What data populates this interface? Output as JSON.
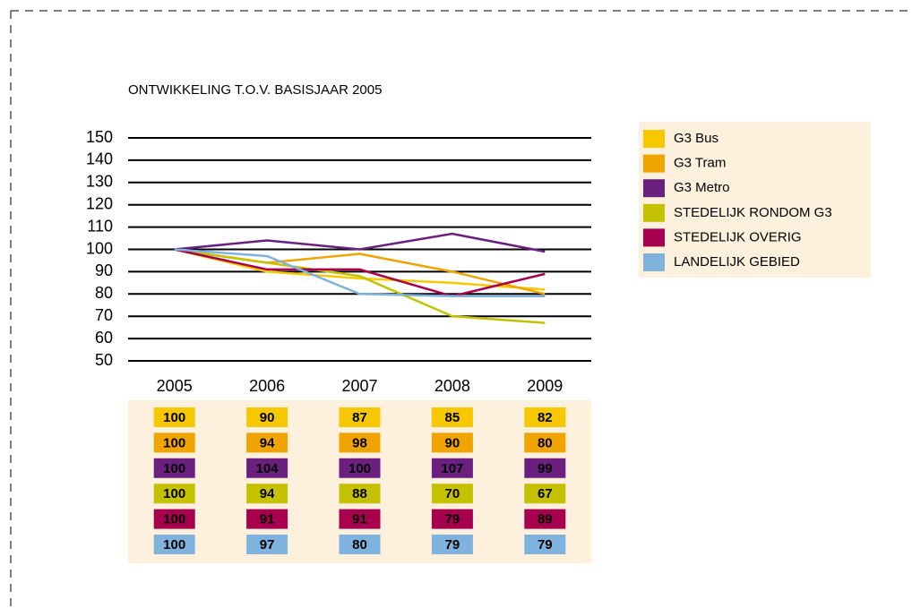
{
  "chart_data": {
    "type": "line",
    "title": "ONTWIKKELING T.O.V. BASISJAAR 2005",
    "categories": [
      "2005",
      "2006",
      "2007",
      "2008",
      "2009"
    ],
    "series": [
      {
        "name": "G3 Bus",
        "color": "#f7c800",
        "values": [
          100,
          90,
          87,
          85,
          82
        ]
      },
      {
        "name": "G3 Tram",
        "color": "#f0a400",
        "values": [
          100,
          94,
          98,
          90,
          80
        ]
      },
      {
        "name": "G3 Metro",
        "color": "#6b2080",
        "values": [
          100,
          104,
          100,
          107,
          99
        ]
      },
      {
        "name": "STEDELIJK RONDOM G3",
        "color": "#c3c100",
        "values": [
          100,
          94,
          88,
          70,
          67
        ]
      },
      {
        "name": "STEDELIJK OVERIG",
        "color": "#a6004e",
        "values": [
          100,
          91,
          91,
          79,
          89
        ]
      },
      {
        "name": "LANDELIJK GEBIED",
        "color": "#7fb3de",
        "values": [
          100,
          97,
          80,
          79,
          79
        ]
      }
    ],
    "ylim": [
      50,
      150
    ],
    "yticks": [
      50,
      60,
      70,
      80,
      90,
      100,
      110,
      120,
      130,
      140,
      150
    ],
    "grid": true
  }
}
